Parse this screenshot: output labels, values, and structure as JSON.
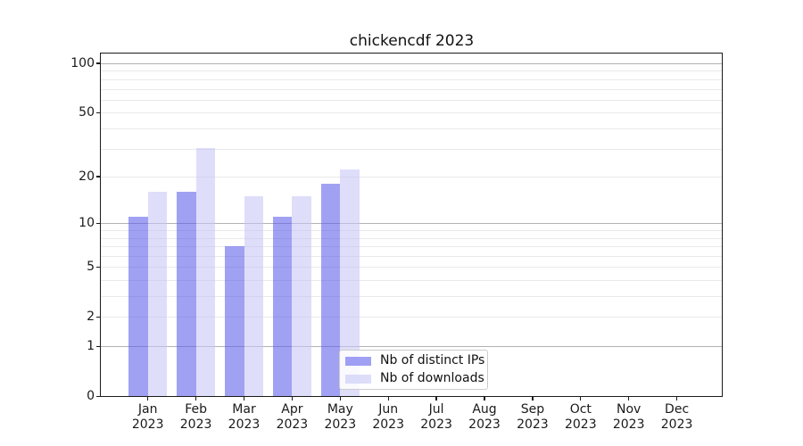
{
  "chart_data": {
    "type": "bar",
    "title": "chickencdf 2023",
    "x_tick_labels": [
      [
        "Jan",
        "2023"
      ],
      [
        "Feb",
        "2023"
      ],
      [
        "Mar",
        "2023"
      ],
      [
        "Apr",
        "2023"
      ],
      [
        "May",
        "2023"
      ],
      [
        "Jun",
        "2023"
      ],
      [
        "Jul",
        "2023"
      ],
      [
        "Aug",
        "2023"
      ],
      [
        "Sep",
        "2023"
      ],
      [
        "Oct",
        "2023"
      ],
      [
        "Nov",
        "2023"
      ],
      [
        "Dec",
        "2023"
      ]
    ],
    "series": [
      {
        "name": "Nb of distinct IPs",
        "color": "rgba(88,88,235,0.56)",
        "values": [
          11,
          16,
          7,
          11,
          18,
          0,
          0,
          0,
          0,
          0,
          0,
          0
        ]
      },
      {
        "name": "Nb of downloads",
        "color": "rgba(196,196,246,0.56)",
        "values": [
          16,
          30,
          15,
          15,
          22,
          0,
          0,
          0,
          0,
          0,
          0,
          0
        ]
      }
    ],
    "y_axis": {
      "scale": "log1p",
      "tick_values": [
        0,
        1,
        2,
        5,
        10,
        20,
        50,
        100
      ],
      "major_grid_values": [
        1,
        10,
        100
      ],
      "minor_grid_values": [
        2,
        3,
        4,
        5,
        6,
        7,
        8,
        9,
        20,
        30,
        40,
        50,
        60,
        70,
        80,
        90
      ],
      "major_grid_color": "#b3b3b3",
      "minor_grid_color": "#e9e9e9"
    },
    "ylim": [
      0,
      115
    ],
    "xlabel": "",
    "ylabel": "",
    "legend_position": "lower center",
    "grid": true
  }
}
